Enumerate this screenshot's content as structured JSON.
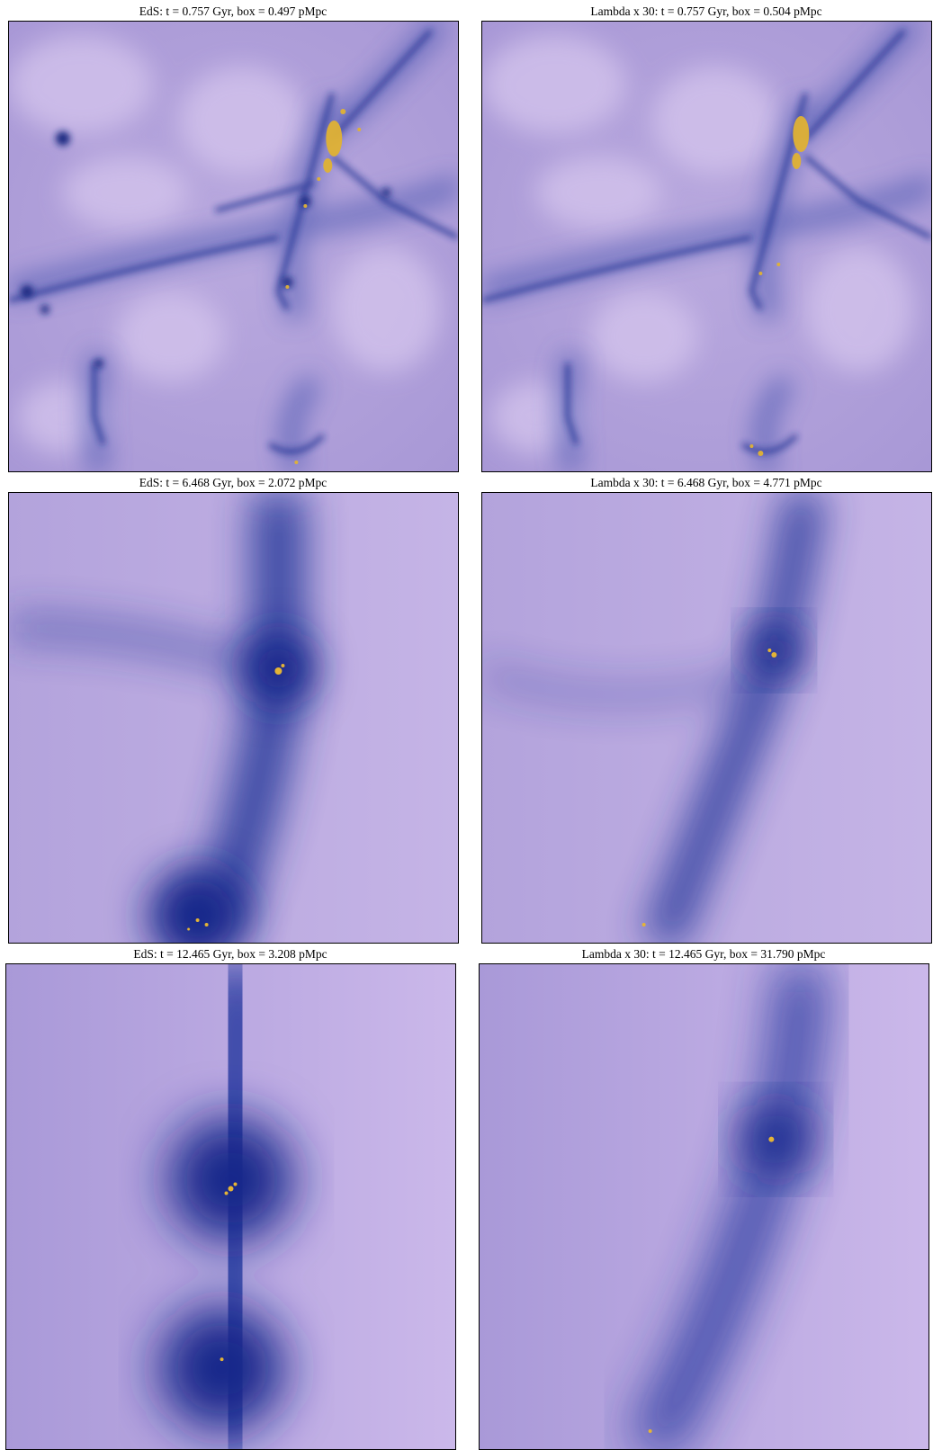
{
  "figure": {
    "panels": [
      {
        "title": "EdS: t = 0.757 Gyr, box = 0.497 pMpc"
      },
      {
        "title": "Lambda x 30: t = 0.757 Gyr, box = 0.504 pMpc"
      },
      {
        "title": "EdS: t = 6.468 Gyr, box = 2.072 pMpc"
      },
      {
        "title": "Lambda x 30: t = 6.468 Gyr, box = 4.771 pMpc"
      },
      {
        "title": "EdS: t = 12.465 Gyr, box = 3.208 pMpc"
      },
      {
        "title": "Lambda x 30: t = 12.465 Gyr, box = 31.790 pMpc"
      }
    ],
    "colors": {
      "void": "#c6b6e6",
      "void_light": "#d6c6ee",
      "filament": "#3a4aa8",
      "dense": "#1a2a8a",
      "hot": "#e8b830"
    }
  }
}
